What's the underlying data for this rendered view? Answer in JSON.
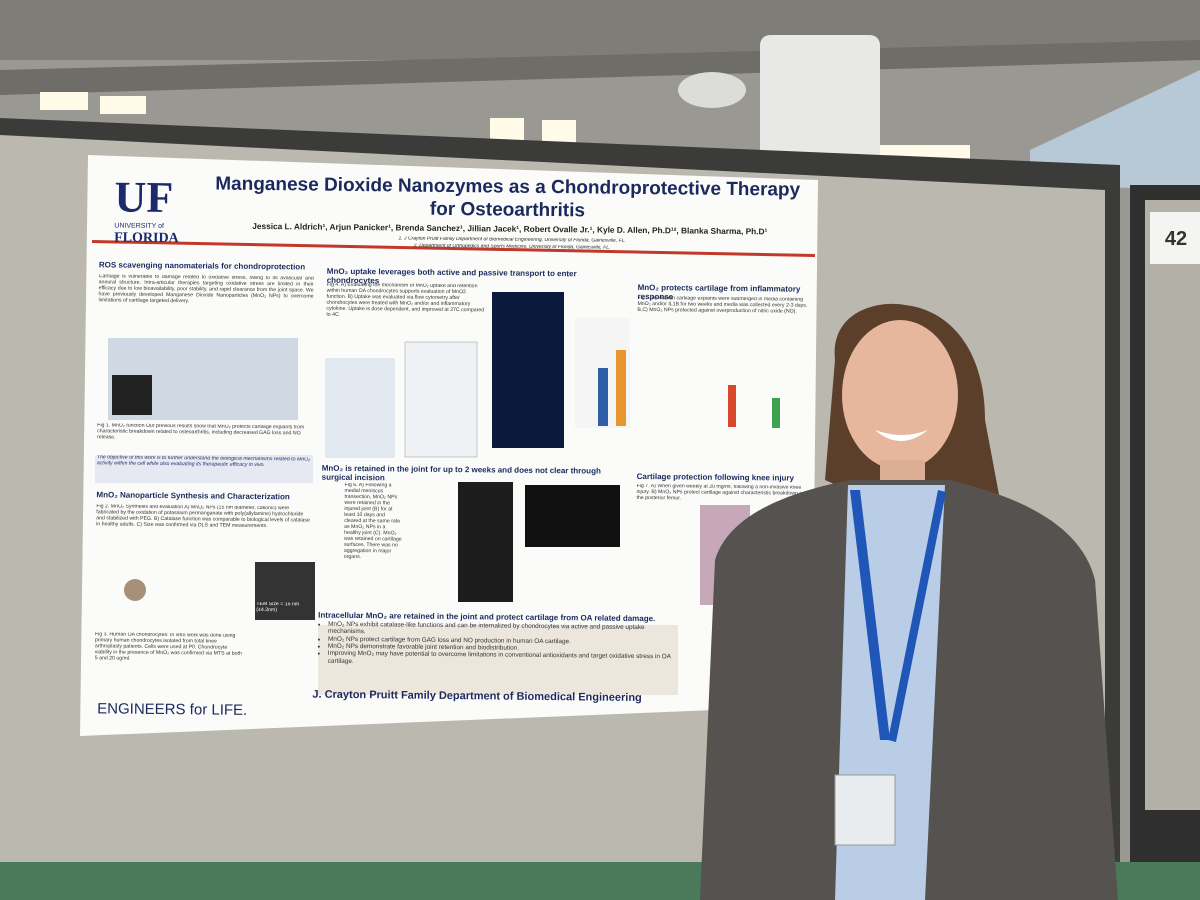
{
  "poster": {
    "logo": {
      "letters": "UF",
      "line1": "UNIVERSITY of",
      "line2": "FLORIDA"
    },
    "title": "Manganese Dioxide Nanozymes as a Chondroprotective Therapy for Osteoarthritis",
    "authors": "Jessica L. Aldrich¹, Arjun Panicker¹, Brenda Sanchez¹, Jillian Jacek¹, Robert Ovalle Jr.¹, Kyle D. Allen, Ph.D¹², Blanka Sharma, Ph.D¹",
    "affiliations": [
      "1. J Crayton Pruitt Family Department of Biomedical Engineering, University of Florida, Gainesville, FL.",
      "2. Department of Orthopedics and Sports Medicine, University of Florida, Gainesville, FL."
    ],
    "sections": [
      {
        "heading": "ROS scavenging nanomaterials for chondroprotection",
        "body": "Cartilage is vulnerable to damage related to oxidative stress, owing to its avascular and aneural structure. Intra-articular therapies targeting oxidative stress are limited in their efficacy due to low bioavailability, poor stability, and rapid clearance from the joint space. We have previously developed Manganese Dioxide Nanoparticles (MnO₂ NPs) to overcome limitations of cartilage targeted delivery."
      },
      {
        "heading": "MnO₂ Nanoparticle Synthesis and Characterization",
        "body": "Fig 2. MnO₂ Synthesis and evaluation A) MnO₂ NPs (15 nm diameter, cationic) were fabricated by the oxidation of potassium permanganate with poly(allylamine) hydrochloride and stabilized with PEG. B) Catalase function was comparable to biological levels of catalase in healthy adults. C) Size was confirmed via DLS and TEM measurements."
      },
      {
        "heading": "MnO₂ uptake leverages both active and passive transport to enter chondrocytes",
        "body": "Fig 4. A) Evaluating the mechanism of MnO₂ uptake and retention within human OA chondrocytes supports evaluation of MnO2 function. B) Uptake was evaluated via flow cytometry after chondrocytes were treated with MnO₂ and/or and inflammatory cytokine. Uptake is dose dependent, and improved at 37C compared to 4C."
      },
      {
        "heading": "MnO₂ protects cartilage from inflammatory response",
        "body": "Fig 5. A) Human cartilage explants were submerged in media containing MnO₂ and/or IL1B for two weeks and media was collected every 2-3 days. B,C) MnO₂ NPs protected against overproduction of nitric oxide (NO)."
      },
      {
        "heading": "MnO₂ is retained in the joint for up to 2 weeks and does not clear through surgical incision",
        "body": "Fig 6. A) Following a medial meniscus transection, MnO₂ NPs were retained in the injured joint (B) for at least 10 days and cleared at the same rate as MnO₂ NPs in a healthy joint (C). MnO₂ was retained on cartilage surfaces. There was no aggregation in major organs."
      },
      {
        "heading": "Cartilage protection following knee injury",
        "body": "Fig 7. A) When given weekly at 20 mg/ml, following a non-invasive knee injury. B) MnO₂ NPs protect cartilage against characteristic breakdown on the posterior femur."
      }
    ],
    "fig1_caption": "Fig 1. MnO₂ function Our previous results show that MnO₂ protects cartilage explants from characteristic breakdown related to osteoarthritis, including decreased GAG loss and NO release.",
    "objective": "The objective of this work is to further understand the biological mechanisms related to MnO₂ activity within the cell while also evaluating its therapeutic efficacy in vivo.",
    "fig3_caption": "Fig 3. Human OA chondrocytes: In vitro work was done using primary human chondrocytes isolated from total knee arthroplasty patients. Cells were used at P0. Chondrocyte viability in the presence of MnO₂ was confirmed via MTS at both 5 and 20 ug/ml.",
    "tem_label": "TEM Size = 15 nm (±4.3nm)",
    "conclusion_heading": "Intracellular MnO₂ are retained in the joint and protect cartilage from OA related damage.",
    "conclusions": [
      "MnO₂ NPs exhibit catalase-like functions and can be internalized by chondrocytes via active and passive uptake mechanisms.",
      "MnO₂ NPs protect cartilage from GAG loss and NO production in human OA cartilage.",
      "MnO₂ NPs demonstrate favorable joint retention and biodistribution.",
      "Improving MnO₂ may have potential to overcome limitations in conventional antioxidants and target oxidative stress in OA cartilage."
    ],
    "footer_left": "ENGINEERS for LIFE.",
    "footer_right": "J. Crayton Pruitt Family Department of Biomedical Engineering"
  },
  "booth_number": "42"
}
